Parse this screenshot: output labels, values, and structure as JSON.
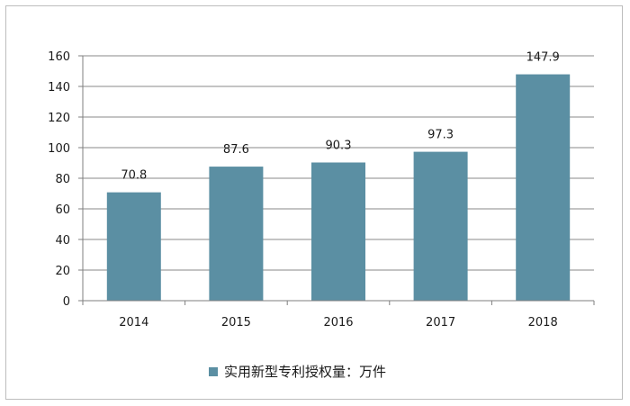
{
  "chart_data": {
    "type": "bar",
    "categories": [
      "2014",
      "2015",
      "2016",
      "2017",
      "2018"
    ],
    "series": [
      {
        "name": "实用新型专利授权量：万件",
        "values": [
          70.8,
          87.6,
          90.3,
          97.3,
          147.9
        ]
      }
    ],
    "data_labels": [
      "70.8",
      "87.6",
      "90.3",
      "97.3",
      "147.9"
    ],
    "ylim": [
      0,
      160
    ],
    "yticks": [
      0,
      20,
      40,
      60,
      80,
      100,
      120,
      140,
      160
    ],
    "grid": true,
    "legend_position": "bottom",
    "bar_color": "#5b8fa3",
    "grid_color": "#8a8a8a",
    "axis_color": "#7f7f7f"
  }
}
